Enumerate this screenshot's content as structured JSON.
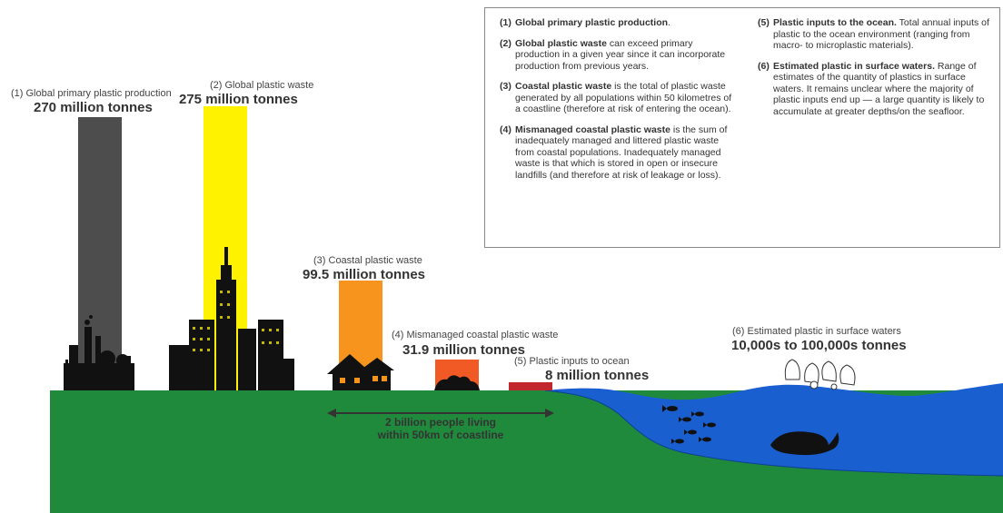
{
  "stages": [
    {
      "label": "(1) Global primary plastic production",
      "value": "270 million tonnes",
      "color": "#4d4d4d"
    },
    {
      "label": "(2) Global plastic waste",
      "value": "275 million tonnes",
      "color": "#fff200"
    },
    {
      "label": "(3) Coastal plastic waste",
      "value": "99.5 million tonnes",
      "color": "#f7941d"
    },
    {
      "label": "(4) Mismanaged coastal plastic waste",
      "value": "31.9 million tonnes",
      "color": "#f15a24"
    },
    {
      "label": "(5) Plastic inputs to ocean",
      "value": "8 million tonnes",
      "color": "#c1272d"
    },
    {
      "label": "(6) Estimated plastic in surface waters",
      "value": "10,000s to 100,000s tonnes"
    }
  ],
  "people_note": {
    "line1": "2 billion people living",
    "line2": "within 50km of coastline"
  },
  "legend": [
    {
      "num": "(1)",
      "term": "Global primary plastic production",
      "desc": "."
    },
    {
      "num": "(2)",
      "term": "Global plastic waste",
      "desc": " can exceed primary production in a given year since it can incorporate production from previous years."
    },
    {
      "num": "(3)",
      "term": "Coastal plastic waste",
      "desc": " is the total of plastic waste generated by all populations within 50 kilometres of a coastline (therefore at risk of entering the ocean)."
    },
    {
      "num": "(4)",
      "term": "Mismanaged coastal plastic waste",
      "desc": " is the sum of inadequately managed and littered plastic waste from coastal populations. Inadequately managed waste is that which is stored in open or insecure landfills (and therefore at risk of leakage or loss)."
    },
    {
      "num": "(5)",
      "term": "Plastic inputs to the ocean.",
      "desc": " Total annual inputs of plastic to the ocean environment (ranging from macro- to microplastic materials)."
    },
    {
      "num": "(6)",
      "term": "Estimated plastic in surface waters.",
      "desc": " Range of estimates of the quantity of plastics in surface waters. It remains unclear where the majority of plastic inputs end up — a large quantity is likely to accumulate at greater depths/on the seafloor."
    }
  ],
  "colors": {
    "ground": "#1f8a3b",
    "ocean": "#1a5fd0",
    "silhouette": "#111111"
  },
  "icons": [
    "factory-icon",
    "skyscraper-icon",
    "house-icon",
    "garbage-pile-icon",
    "fish-icon",
    "whale-icon",
    "plastic-bags-icon",
    "double-arrow-icon"
  ]
}
